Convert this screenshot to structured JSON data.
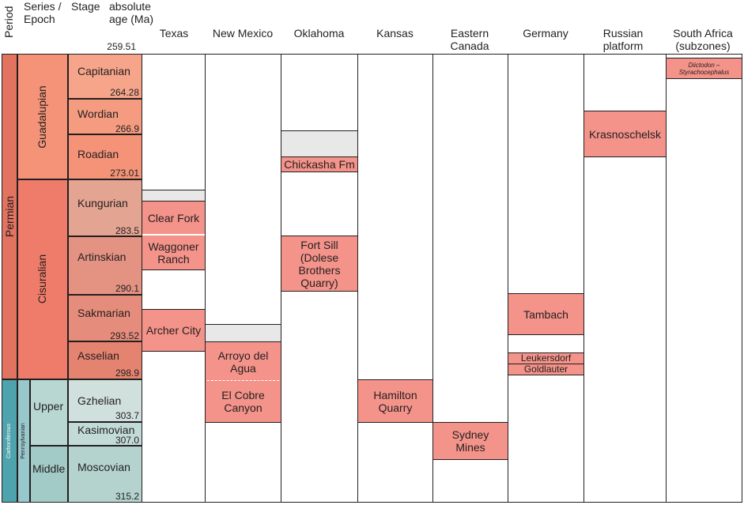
{
  "headers": {
    "period": "Period",
    "series": "Series /\nEpoch",
    "stage": "Stage",
    "age": "absolute\nage (Ma)",
    "top_age": "259.51",
    "columns": [
      "Texas",
      "New Mexico",
      "Oklahoma",
      "Kansas",
      "Eastern\nCanada",
      "Germany",
      "Russian\nplatform",
      "South Africa\n(subzones)"
    ]
  },
  "periods": [
    {
      "name": "Permian",
      "color": "#e27360"
    },
    {
      "name": "Carboniferous",
      "color": "#4fa3ad"
    }
  ],
  "epochs": [
    {
      "name": "Guadalupian",
      "color": "#f49377"
    },
    {
      "name": "Cisuralian",
      "color": "#ef7c6a"
    },
    {
      "name": "Pennsylvanian",
      "color": "#98c8cb"
    }
  ],
  "subepochs": [
    {
      "name": "Upper",
      "color": "#b8d6d2"
    },
    {
      "name": "Middle",
      "color": "#a2cbc7"
    }
  ],
  "stages": [
    {
      "name": "Capitanian",
      "age": "264.28",
      "color": "#f6a58a"
    },
    {
      "name": "Wordian",
      "age": "266.9",
      "color": "#f59b80"
    },
    {
      "name": "Roadian",
      "age": "273.01",
      "color": "#f49378"
    },
    {
      "name": "Kungurian",
      "age": "283.5",
      "color": "#e3a492"
    },
    {
      "name": "Artinskian",
      "age": "290.1",
      "color": "#e49383"
    },
    {
      "name": "Sakmarian",
      "age": "293.52",
      "color": "#e68c7c"
    },
    {
      "name": "Asselian",
      "age": "298.9",
      "color": "#e48370"
    },
    {
      "name": "Gzhelian",
      "age": "303.7",
      "color": "#cfe0dd"
    },
    {
      "name": "Kasimovian",
      "age": "307.0",
      "color": "#c3dbd7"
    },
    {
      "name": "Moscovian",
      "age": "315.2",
      "color": "#b4d3cf"
    }
  ],
  "localities": {
    "texas": [
      "Clear Fork",
      "Waggoner\nRanch",
      "Archer City"
    ],
    "new_mexico": [
      "Arroyo del\nAgua",
      "El Cobre\nCanyon"
    ],
    "oklahoma": [
      "Chickasha Fm",
      "Fort Sill\n(Dolese\nBrothers\nQuarry)"
    ],
    "kansas": [
      "Hamilton\nQuarry"
    ],
    "eastern_canada": [
      "Sydney\nMines"
    ],
    "germany": [
      "Tambach",
      "Leukersdorf",
      "Goldlauter"
    ],
    "russian_platform": [
      "Krasnoschelsk"
    ],
    "south_africa": [
      "Diictodon –\nStyrachocephalus"
    ]
  },
  "colors": {
    "locality_fill": "#f4938a",
    "gap_fill": "#e8e8e9",
    "line": "#231f20"
  }
}
